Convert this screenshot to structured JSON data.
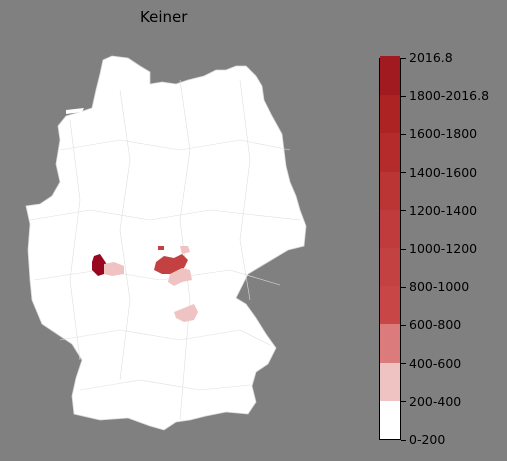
{
  "title": "Keiner",
  "legend": {
    "labels": [
      "0-200",
      "200-400",
      "400-600",
      "600-800",
      "800-1000",
      "1000-1200",
      "1200-1400",
      "1400-1600",
      "1600-1800",
      "1800-2016.8",
      "2016.8"
    ],
    "colors": [
      "#ffffff",
      "#f0c3c3",
      "#db7b7b",
      "#c94646",
      "#c44141",
      "#c03b3b",
      "#bb3535",
      "#b52b2b",
      "#ad2222",
      "#a11a20",
      "#98071f"
    ]
  },
  "map": {
    "land_color": "#ffffff",
    "border_color": "#d8d8d8",
    "highlighted_regions": [
      {
        "area": "west",
        "color": "#98071f"
      },
      {
        "area": "west-east-neighbor",
        "color": "#f0c3c3"
      },
      {
        "area": "central",
        "color": "#c44141"
      },
      {
        "area": "central-south",
        "color": "#f0c3c3"
      },
      {
        "area": "central-north-small",
        "color": "#c44141"
      },
      {
        "area": "central-north-pale",
        "color": "#f0c3c3"
      },
      {
        "area": "southeast",
        "color": "#f0c3c3"
      }
    ]
  }
}
